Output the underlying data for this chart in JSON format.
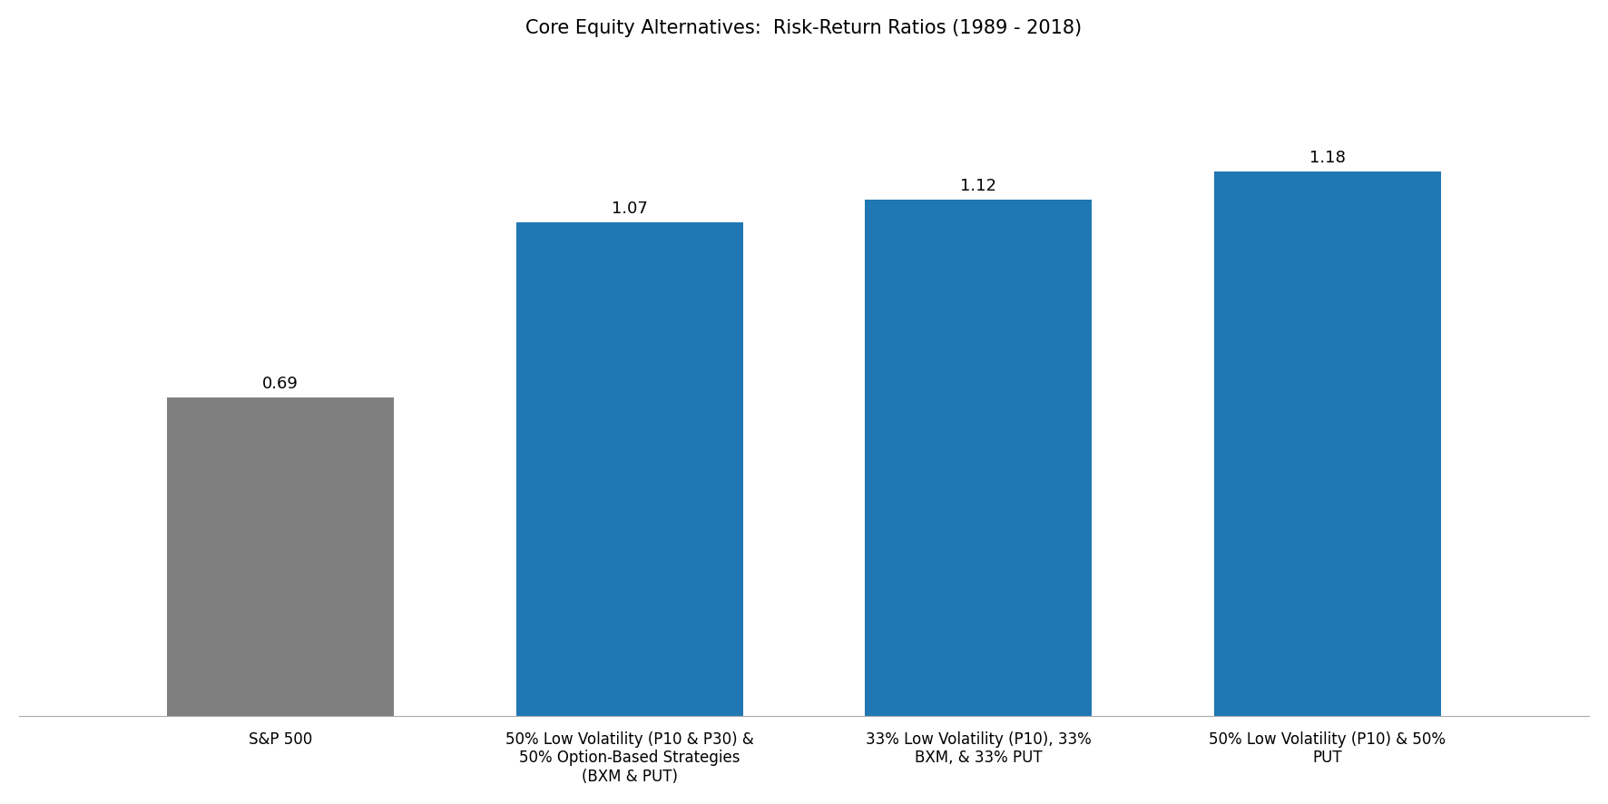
{
  "title": "Core Equity Alternatives:  Risk-Return Ratios (1989 - 2018)",
  "categories": [
    "S&P 500",
    "50% Low Volatility (P10 & P30) &\n50% Option-Based Strategies\n(BXM & PUT)",
    "33% Low Volatility (P10), 33%\nBXM, & 33% PUT",
    "50% Low Volatility (P10) & 50%\nPUT"
  ],
  "values": [
    0.69,
    1.07,
    1.12,
    1.18
  ],
  "bar_colors": [
    "#7f7f7f",
    "#1f77b4",
    "#1f77b4",
    "#1f77b4"
  ],
  "value_labels": [
    "0.69",
    "1.07",
    "1.12",
    "1.18"
  ],
  "ylim": [
    0,
    1.42
  ],
  "title_fontsize": 15,
  "label_fontsize": 12,
  "value_fontsize": 13,
  "bar_width": 0.65,
  "background_color": "#ffffff"
}
